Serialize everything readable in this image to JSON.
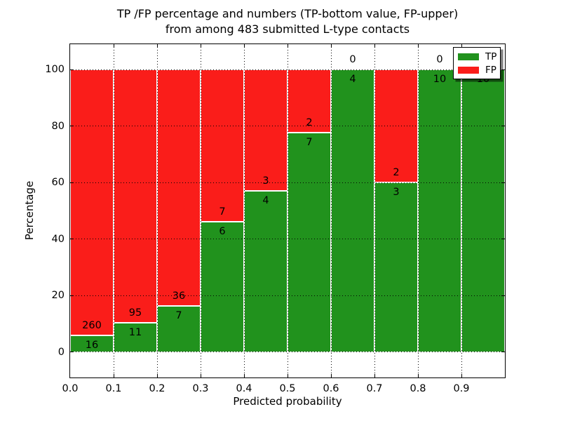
{
  "chart_data": {
    "type": "bar",
    "stacked": true,
    "orientation": "vertical",
    "title_lines": [
      "TP /FP percentage and numbers (TP-bottom value, FP-upper)",
      "from among 483 submitted L-type contacts"
    ],
    "xlabel": "Predicted probability",
    "ylabel": "Percentage",
    "total_submitted_contacts": 483,
    "categories": [
      "0.0-0.1",
      "0.1-0.2",
      "0.2-0.3",
      "0.3-0.4",
      "0.4-0.5",
      "0.5-0.6",
      "0.6-0.7",
      "0.7-0.8",
      "0.8-0.9",
      "0.9-1.0"
    ],
    "bin_starts": [
      0.0,
      0.1,
      0.2,
      0.3,
      0.4,
      0.5,
      0.6,
      0.7,
      0.8,
      0.9
    ],
    "bin_width": 0.1,
    "series": [
      {
        "name": "TP",
        "color": "#21921d",
        "counts": [
          16,
          11,
          7,
          6,
          4,
          7,
          4,
          3,
          10,
          10
        ],
        "percent_of_bin": [
          5.8,
          10.4,
          16.3,
          46.2,
          57.1,
          77.8,
          100.0,
          60.0,
          100.0,
          100.0
        ]
      },
      {
        "name": "FP",
        "color": "#fa1d1a",
        "counts": [
          260,
          95,
          36,
          7,
          3,
          2,
          0,
          2,
          0,
          0
        ],
        "percent_of_bin": [
          94.2,
          89.6,
          83.7,
          53.8,
          42.9,
          22.2,
          0.0,
          40.0,
          0.0,
          0.0
        ]
      }
    ],
    "xticks": [
      "0.0",
      "0.1",
      "0.2",
      "0.3",
      "0.4",
      "0.5",
      "0.6",
      "0.7",
      "0.8",
      "0.9"
    ],
    "xtick_values": [
      0,
      0.1,
      0.2,
      0.3,
      0.4,
      0.5,
      0.6,
      0.7,
      0.8,
      0.9
    ],
    "yticks": [
      0,
      20,
      40,
      60,
      80,
      100
    ],
    "xlim": [
      0,
      1
    ],
    "ylim": [
      -9,
      109
    ],
    "grid": "dotted",
    "legend": {
      "position": "upper right",
      "entries": [
        "TP",
        "FP"
      ]
    },
    "annotation_rule": "TP count below segment boundary, FP count above segment boundary"
  }
}
